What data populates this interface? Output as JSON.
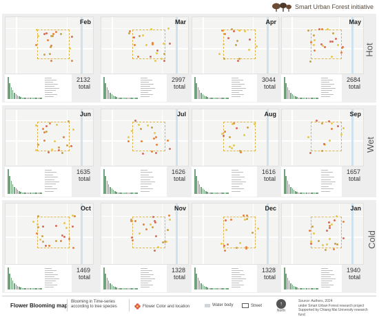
{
  "header": {
    "brand_title": "Smart Urban Forest initiative",
    "logo_icon": "tree-logo-icon"
  },
  "seasons": [
    "Hot",
    "Wet",
    "Cold"
  ],
  "panels": [
    {
      "month": "Feb",
      "total": "2132",
      "unit": "total"
    },
    {
      "month": "Mar",
      "total": "2997",
      "unit": "total"
    },
    {
      "month": "Apr",
      "total": "3044",
      "unit": "total"
    },
    {
      "month": "May",
      "total": "2684",
      "unit": "total"
    },
    {
      "month": "Jun",
      "total": "1635",
      "unit": "total"
    },
    {
      "month": "Jul",
      "total": "1626",
      "unit": "total"
    },
    {
      "month": "Aug",
      "total": "1616",
      "unit": "total"
    },
    {
      "month": "Sep",
      "total": "1657",
      "unit": "total"
    },
    {
      "month": "Oct",
      "total": "1469",
      "unit": "total"
    },
    {
      "month": "Nov",
      "total": "1328",
      "unit": "total"
    },
    {
      "month": "Dec",
      "total": "1328",
      "unit": "total"
    },
    {
      "month": "Jan",
      "total": "1940",
      "unit": "total"
    }
  ],
  "footer": {
    "title": "Flower Blooming map",
    "subtitle_line1": "Blooming in Time-series",
    "subtitle_line2": "according to tree species",
    "legend_flower": "Flower Color and location",
    "legend_water": "Water body",
    "legend_street": "Street",
    "north_label": "North",
    "north_icon": "north-arrow-icon",
    "source_line1": "Source: Authors, 2024",
    "source_line2": "under Smart Urban Forest research project",
    "source_line3": "Supported by Chiang Mai University research fund"
  },
  "colors": {
    "bar": "#6fa27a",
    "square": "#e0b24a",
    "water": "#cfe2ef",
    "hot": "#e8823a",
    "yellow": "#e6c84a"
  }
}
